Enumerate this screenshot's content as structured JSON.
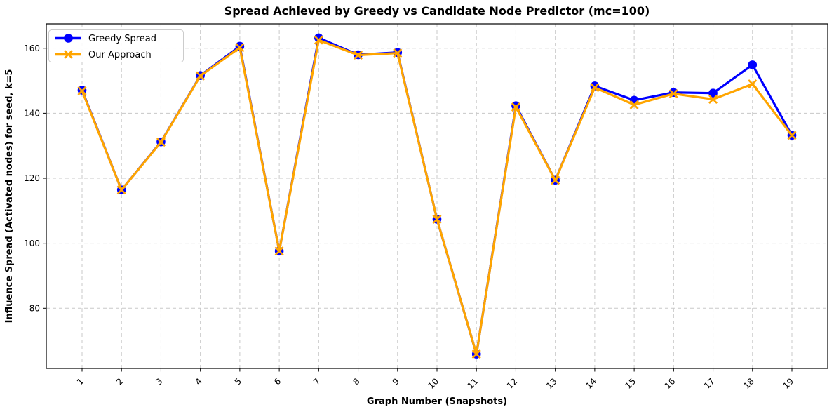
{
  "chart_data": {
    "type": "line",
    "title": "Spread Achieved by Greedy vs Candidate Node Predictor (mc=100)",
    "xlabel": "Graph Number (Snapshots)",
    "ylabel": "Influence Spread (Activated nodes) for seed, k=5",
    "x": [
      1,
      2,
      3,
      4,
      5,
      6,
      7,
      8,
      9,
      10,
      11,
      12,
      13,
      14,
      15,
      16,
      17,
      18,
      19
    ],
    "series": [
      {
        "name": "Greedy Spread",
        "color": "#0000ff",
        "marker": "circle",
        "values": [
          147.1,
          116.4,
          131.2,
          151.6,
          160.6,
          97.6,
          163.2,
          158.0,
          158.7,
          107.4,
          65.9,
          142.3,
          119.4,
          148.4,
          144.0,
          146.4,
          146.2,
          154.9,
          133.2
        ]
      },
      {
        "name": "Our Approach",
        "color": "#ffa500",
        "marker": "x",
        "values": [
          146.9,
          116.4,
          131.1,
          151.5,
          160.2,
          97.6,
          162.5,
          157.9,
          158.5,
          107.4,
          65.9,
          141.9,
          119.4,
          147.9,
          142.6,
          146.0,
          144.3,
          149.0,
          133.2
        ]
      }
    ],
    "ylim": [
      61.5,
      167.5
    ],
    "yticks": [
      80,
      100,
      120,
      140,
      160
    ],
    "grid": true,
    "grid_color": "#c8c8c8",
    "legend_position": "upper-left"
  }
}
